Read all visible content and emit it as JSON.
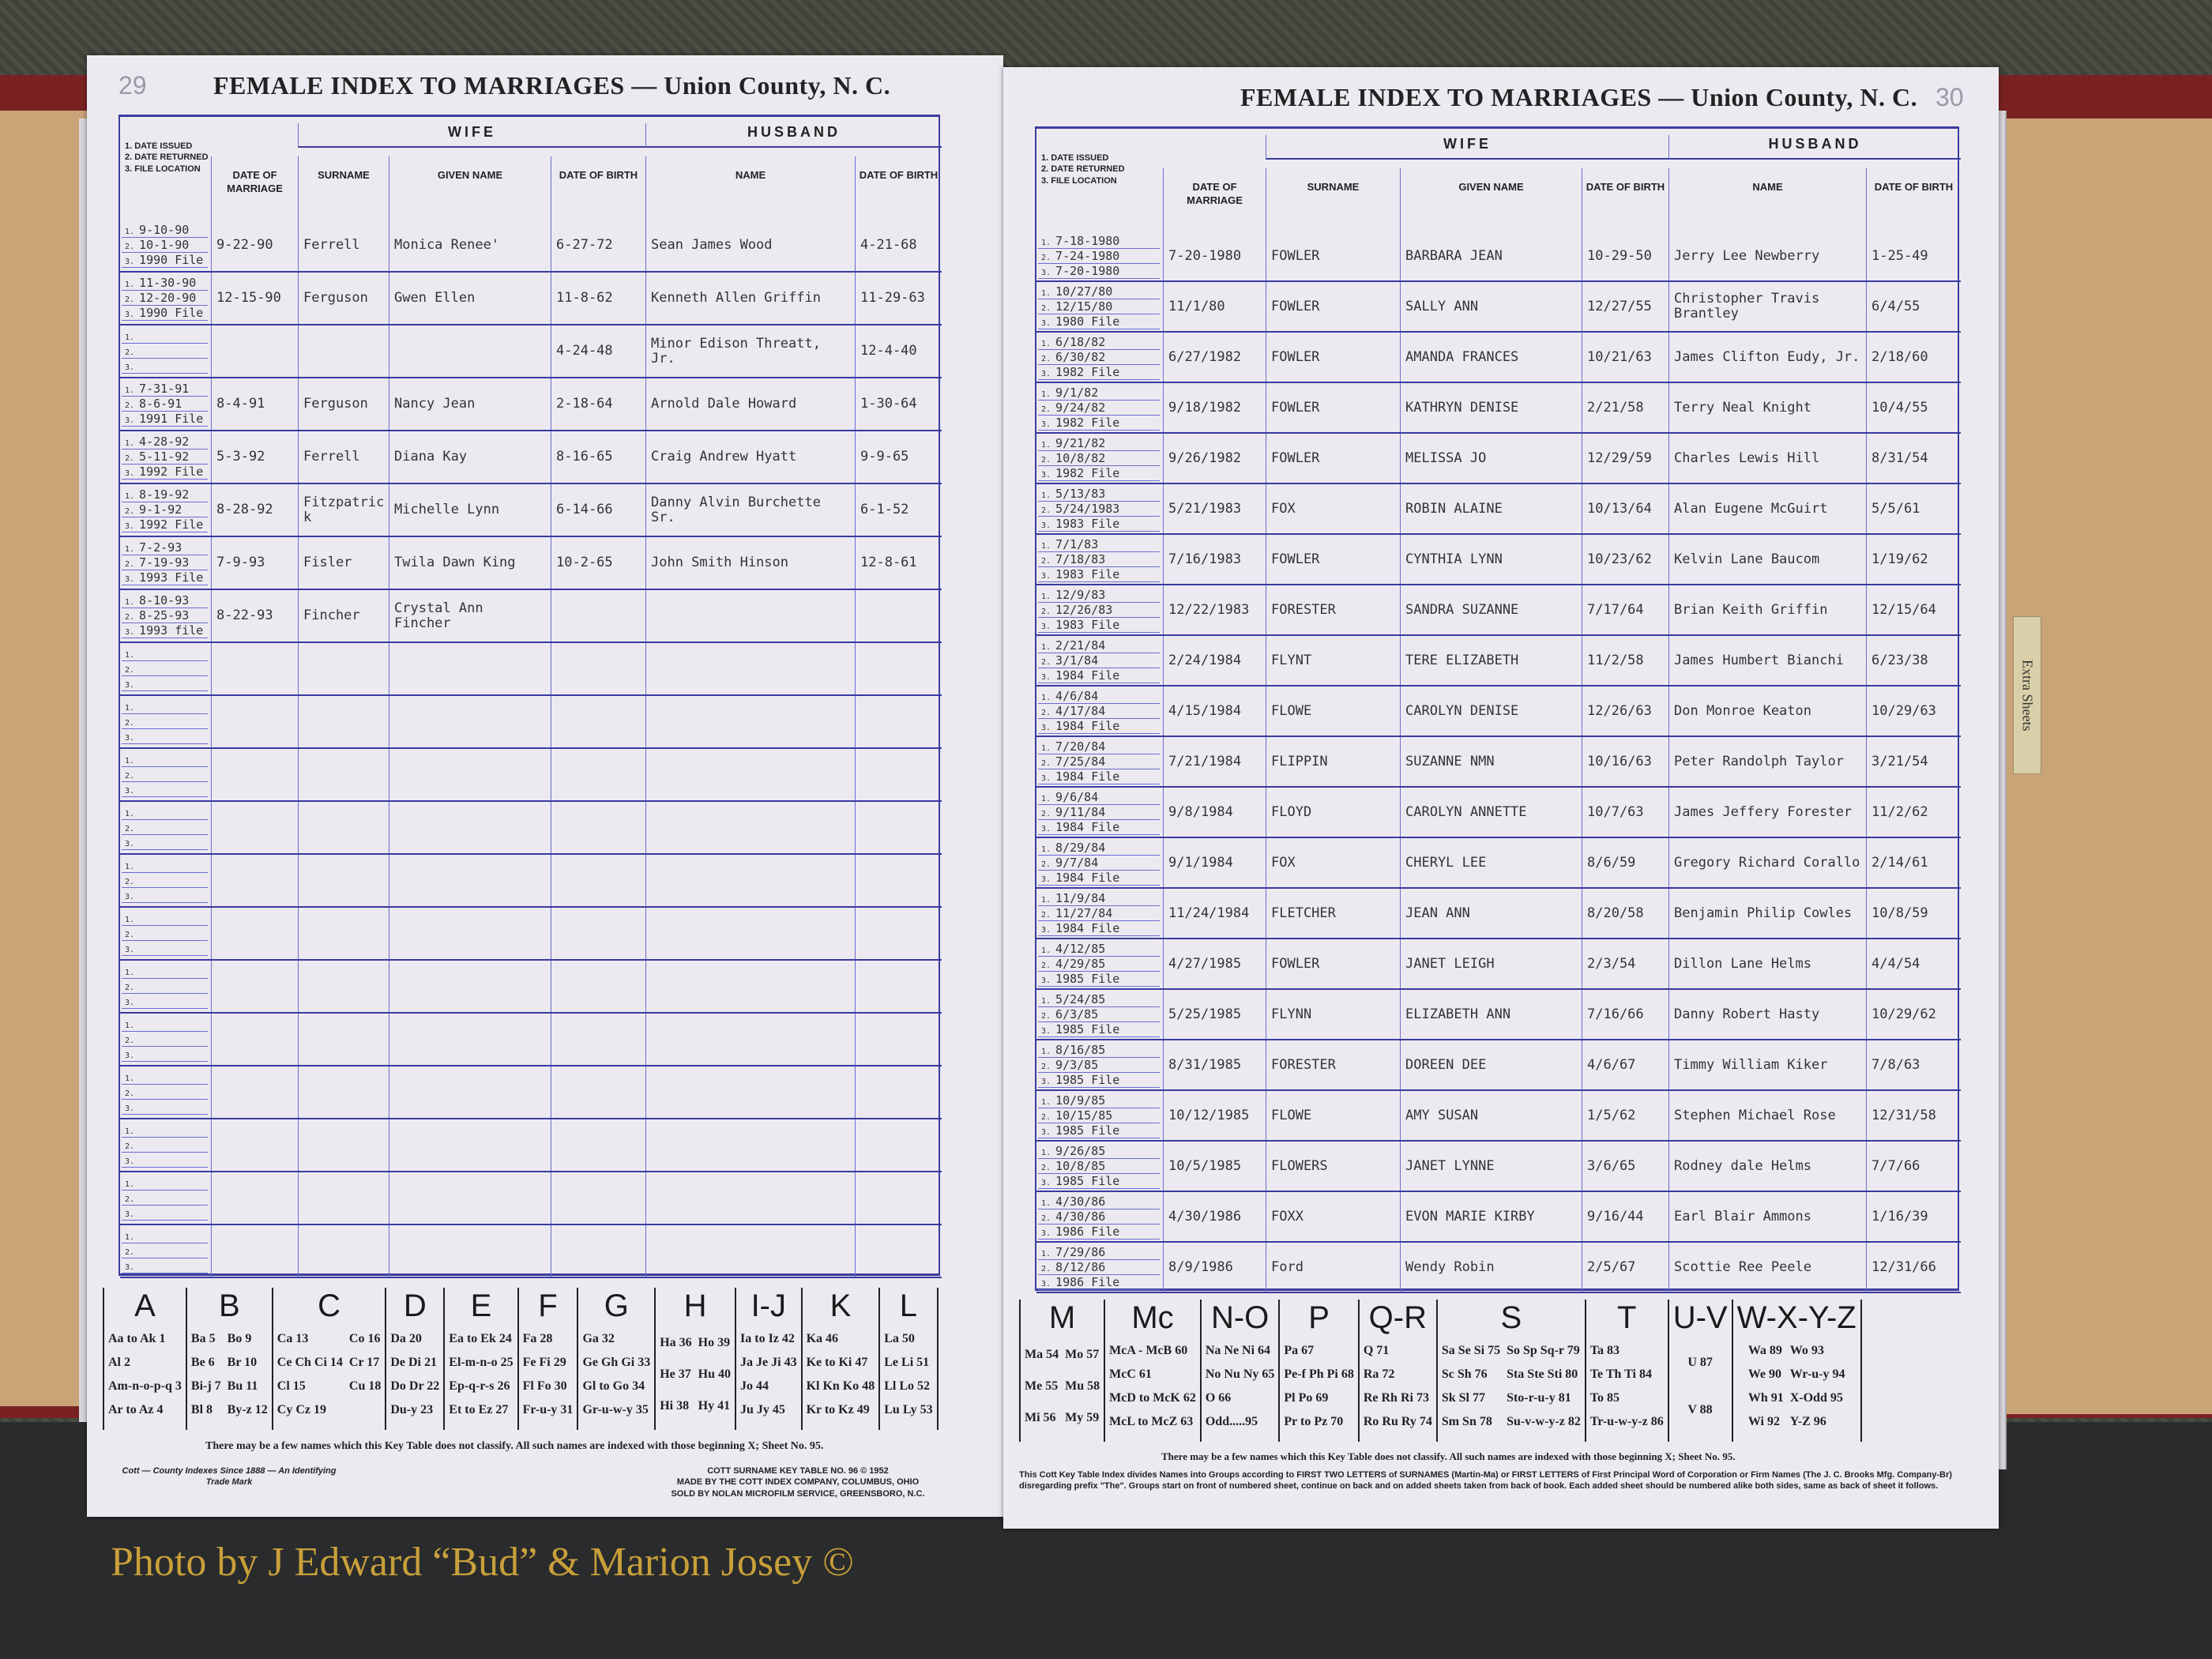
{
  "photo_credit": "Photo by J Edward “Bud” & Marion Josey ©",
  "extra_sheets_tab": "Extra Sheets",
  "headers": {
    "file_col": [
      "1. DATE ISSUED",
      "2. DATE RETURNED",
      "3. FILE LOCATION"
    ],
    "date_of_marriage": "Date of Marriage",
    "wife": "Wife",
    "surname": "Surname",
    "given_name": "Given Name",
    "date_of_birth": "Date of Birth",
    "husband": "Husband",
    "name": "Name"
  },
  "left_page": {
    "title": "FEMALE INDEX TO MARRIAGES — Union County, N. C.",
    "page_number": "29",
    "blank_rows": 13,
    "entries": [
      {
        "issued": "9-10-90",
        "returned": "10-1-90",
        "file": "1990 File",
        "married": "9-22-90",
        "surname": "Ferrell",
        "given": "Monica Renee'",
        "wife_dob": "6-27-72",
        "husband": "Sean James Wood",
        "husband_dob": "4-21-68"
      },
      {
        "issued": "11-30-90",
        "returned": "12-20-90",
        "file": "1990 File",
        "married": "12-15-90",
        "surname": "Ferguson",
        "given": "Gwen Ellen",
        "wife_dob": "11-8-62",
        "husband": "Kenneth Allen Griffin",
        "husband_dob": "11-29-63"
      },
      {
        "issued": "",
        "returned": "",
        "file": "",
        "married": "",
        "surname": "",
        "given": "",
        "wife_dob": "4-24-48",
        "husband": "Minor Edison Threatt, Jr.",
        "husband_dob": "12-4-40"
      },
      {
        "issued": "7-31-91",
        "returned": "8-6-91",
        "file": "1991 File",
        "married": "8-4-91",
        "surname": "Ferguson",
        "given": "Nancy Jean",
        "wife_dob": "2-18-64",
        "husband": "Arnold Dale Howard",
        "husband_dob": "1-30-64"
      },
      {
        "issued": "4-28-92",
        "returned": "5-11-92",
        "file": "1992 File",
        "married": "5-3-92",
        "surname": "Ferrell",
        "given": "Diana Kay",
        "wife_dob": "8-16-65",
        "husband": "Craig Andrew Hyatt",
        "husband_dob": "9-9-65"
      },
      {
        "issued": "8-19-92",
        "returned": "9-1-92",
        "file": "1992 File",
        "married": "8-28-92",
        "surname": "Fitzpatrick",
        "given": "Michelle Lynn",
        "wife_dob": "6-14-66",
        "husband": "Danny Alvin Burchette Sr.",
        "husband_dob": "6-1-52"
      },
      {
        "issued": "7-2-93",
        "returned": "7-19-93",
        "file": "1993 File",
        "married": "7-9-93",
        "surname": "Fisler",
        "given": "Twila Dawn King",
        "wife_dob": "10-2-65",
        "husband": "John Smith Hinson",
        "husband_dob": "12-8-61"
      },
      {
        "issued": "8-10-93",
        "returned": "8-25-93",
        "file": "1993 file",
        "married": "8-22-93",
        "surname": "Fincher",
        "given": "Crystal Ann Fincher",
        "wife_dob": "",
        "husband": "",
        "husband_dob": ""
      }
    ],
    "key_table": [
      {
        "letter": "A",
        "entries": [
          "Aa to Ak 1",
          "Al 2",
          "Am-n-o-p-q 3",
          "Ar to Az 4"
        ]
      },
      {
        "letter": "B",
        "entries": [
          "Ba 5",
          "Be 6",
          "Bi-j 7",
          "Bl 8",
          "Bo 9",
          "Br 10",
          "Bu 11",
          "By-z 12"
        ]
      },
      {
        "letter": "C",
        "entries": [
          "Ca 13",
          "Ce Ch Ci 14",
          "Cl 15",
          "Cy Cz 19",
          "Co 16",
          "Cr 17",
          "Cu 18"
        ]
      },
      {
        "letter": "D",
        "entries": [
          "Da 20",
          "De Di 21",
          "Do Dr 22",
          "Du-y 23"
        ]
      },
      {
        "letter": "E",
        "entries": [
          "Ea to Ek 24",
          "El-m-n-o 25",
          "Ep-q-r-s 26",
          "Et to Ez 27"
        ]
      },
      {
        "letter": "F",
        "entries": [
          "Fa 28",
          "Fe Fi 29",
          "Fl Fo 30",
          "Fr-u-y 31"
        ]
      },
      {
        "letter": "G",
        "entries": [
          "Ga 32",
          "Ge Gh Gi 33",
          "Gl to Go 34",
          "Gr-u-w-y 35"
        ]
      },
      {
        "letter": "H",
        "entries": [
          "Ha 36",
          "He 37",
          "Hi 38",
          "Ho 39",
          "Hu 40",
          "Hy 41"
        ]
      },
      {
        "letter": "I-J",
        "entries": [
          "Ia to Iz 42",
          "Ja Je Ji 43",
          "Jo 44",
          "Ju Jy 45"
        ]
      },
      {
        "letter": "K",
        "entries": [
          "Ka 46",
          "Ke to Ki 47",
          "Kl Kn Ko 48",
          "Kr to Kz 49"
        ]
      },
      {
        "letter": "L",
        "entries": [
          "La 50",
          "Le Li 51",
          "Ll Lo 52",
          "Lu Ly 53"
        ]
      }
    ],
    "key_note": "There may be a few names which this Key Table does not classify.  All such names are indexed with those beginning X; Sheet No. 95.",
    "trademark": "Cott — County Indexes Since 1888 — An Identifying Trade Mark",
    "publisher": [
      "COTT SURNAME KEY TABLE NO. 96 © 1952",
      "MADE BY THE COTT INDEX COMPANY, COLUMBUS, OHIO",
      "SOLD BY NOLAN MICROFILM SERVICE, GREENSBORO, N.C."
    ]
  },
  "right_page": {
    "title": "FEMALE INDEX TO MARRIAGES — Union County, N. C.",
    "page_number": "30",
    "entries": [
      {
        "issued": "7-18-1980",
        "returned": "7-24-1980",
        "file": "7-20-1980",
        "married": "7-20-1980",
        "surname": "FOWLER",
        "given": "BARBARA JEAN",
        "wife_dob": "10-29-50",
        "husband": "Jerry Lee Newberry",
        "husband_dob": "1-25-49"
      },
      {
        "issued": "10/27/80",
        "returned": "12/15/80",
        "file": "1980 File",
        "married": "11/1/80",
        "surname": "FOWLER",
        "given": "SALLY ANN",
        "wife_dob": "12/27/55",
        "husband": "Christopher Travis Brantley",
        "husband_dob": "6/4/55"
      },
      {
        "issued": "6/18/82",
        "returned": "6/30/82",
        "file": "1982 File",
        "married": "6/27/1982",
        "surname": "FOWLER",
        "given": "AMANDA FRANCES",
        "wife_dob": "10/21/63",
        "husband": "James Clifton Eudy, Jr.",
        "husband_dob": "2/18/60"
      },
      {
        "issued": "9/1/82",
        "returned": "9/24/82",
        "file": "1982 File",
        "married": "9/18/1982",
        "surname": "FOWLER",
        "given": "KATHRYN DENISE",
        "wife_dob": "2/21/58",
        "husband": "Terry Neal Knight",
        "husband_dob": "10/4/55"
      },
      {
        "issued": "9/21/82",
        "returned": "10/8/82",
        "file": "1982 File",
        "married": "9/26/1982",
        "surname": "FOWLER",
        "given": "MELISSA JO",
        "wife_dob": "12/29/59",
        "husband": "Charles Lewis Hill",
        "husband_dob": "8/31/54"
      },
      {
        "issued": "5/13/83",
        "returned": "5/24/1983",
        "file": "1983 File",
        "married": "5/21/1983",
        "surname": "FOX",
        "given": "ROBIN ALAINE",
        "wife_dob": "10/13/64",
        "husband": "Alan Eugene McGuirt",
        "husband_dob": "5/5/61"
      },
      {
        "issued": "7/1/83",
        "returned": "7/18/83",
        "file": "1983 File",
        "married": "7/16/1983",
        "surname": "FOWLER",
        "given": "CYNTHIA LYNN",
        "wife_dob": "10/23/62",
        "husband": "Kelvin Lane Baucom",
        "husband_dob": "1/19/62"
      },
      {
        "issued": "12/9/83",
        "returned": "12/26/83",
        "file": "1983 File",
        "married": "12/22/1983",
        "surname": "FORESTER",
        "given": "SANDRA SUZANNE",
        "wife_dob": "7/17/64",
        "husband": "Brian Keith Griffin",
        "husband_dob": "12/15/64"
      },
      {
        "issued": "2/21/84",
        "returned": "3/1/84",
        "file": "1984 File",
        "married": "2/24/1984",
        "surname": "FLYNT",
        "given": "TERE ELIZABETH",
        "wife_dob": "11/2/58",
        "husband": "James Humbert Bianchi",
        "husband_dob": "6/23/38"
      },
      {
        "issued": "4/6/84",
        "returned": "4/17/84",
        "file": "1984 File",
        "married": "4/15/1984",
        "surname": "FLOWE",
        "given": "CAROLYN DENISE",
        "wife_dob": "12/26/63",
        "husband": "Don Monroe Keaton",
        "husband_dob": "10/29/63"
      },
      {
        "issued": "7/20/84",
        "returned": "7/25/84",
        "file": "1984 File",
        "married": "7/21/1984",
        "surname": "FLIPPIN",
        "given": "SUZANNE NMN",
        "wife_dob": "10/16/63",
        "husband": "Peter Randolph Taylor",
        "husband_dob": "3/21/54"
      },
      {
        "issued": "9/6/84",
        "returned": "9/11/84",
        "file": "1984 File",
        "married": "9/8/1984",
        "surname": "FLOYD",
        "given": "CAROLYN ANNETTE",
        "wife_dob": "10/7/63",
        "husband": "James Jeffery Forester",
        "husband_dob": "11/2/62"
      },
      {
        "issued": "8/29/84",
        "returned": "9/7/84",
        "file": "1984 File",
        "married": "9/1/1984",
        "surname": "FOX",
        "given": "CHERYL LEE",
        "wife_dob": "8/6/59",
        "husband": "Gregory Richard Corallo",
        "husband_dob": "2/14/61"
      },
      {
        "issued": "11/9/84",
        "returned": "11/27/84",
        "file": "1984 File",
        "married": "11/24/1984",
        "surname": "FLETCHER",
        "given": "JEAN ANN",
        "wife_dob": "8/20/58",
        "husband": "Benjamin Philip Cowles",
        "husband_dob": "10/8/59"
      },
      {
        "issued": "4/12/85",
        "returned": "4/29/85",
        "file": "1985 File",
        "married": "4/27/1985",
        "surname": "FOWLER",
        "given": "JANET LEIGH",
        "wife_dob": "2/3/54",
        "husband": "Dillon Lane Helms",
        "husband_dob": "4/4/54"
      },
      {
        "issued": "5/24/85",
        "returned": "6/3/85",
        "file": "1985 File",
        "married": "5/25/1985",
        "surname": "FLYNN",
        "given": "ELIZABETH ANN",
        "wife_dob": "7/16/66",
        "husband": "Danny Robert Hasty",
        "husband_dob": "10/29/62"
      },
      {
        "issued": "8/16/85",
        "returned": "9/3/85",
        "file": "1985 File",
        "married": "8/31/1985",
        "surname": "FORESTER",
        "given": "DOREEN DEE",
        "wife_dob": "4/6/67",
        "husband": "Timmy William Kiker",
        "husband_dob": "7/8/63"
      },
      {
        "issued": "10/9/85",
        "returned": "10/15/85",
        "file": "1985 File",
        "married": "10/12/1985",
        "surname": "FLOWE",
        "given": "AMY SUSAN",
        "wife_dob": "1/5/62",
        "husband": "Stephen Michael Rose",
        "husband_dob": "12/31/58"
      },
      {
        "issued": "9/26/85",
        "returned": "10/8/85",
        "file": "1985 File",
        "married": "10/5/1985",
        "surname": "FLOWERS",
        "given": "JANET LYNNE",
        "wife_dob": "3/6/65",
        "husband": "Rodney dale Helms",
        "husband_dob": "7/7/66"
      },
      {
        "issued": "4/30/86",
        "returned": "4/30/86",
        "file": "1986 File",
        "married": "4/30/1986",
        "surname": "FOXX",
        "given": "EVON MARIE KIRBY",
        "wife_dob": "9/16/44",
        "husband": "Earl Blair Ammons",
        "husband_dob": "1/16/39"
      },
      {
        "issued": "7/29/86",
        "returned": "8/12/86",
        "file": "1986 File",
        "married": "8/9/1986",
        "surname": "Ford",
        "given": "Wendy Robin",
        "wife_dob": "2/5/67",
        "husband": "Scottie Ree Peele",
        "husband_dob": "12/31/66"
      }
    ],
    "key_table": [
      {
        "letter": "M",
        "entries": [
          "Ma 54",
          "Me 55",
          "Mi 56",
          "Mo 57",
          "Mu 58",
          "My 59"
        ]
      },
      {
        "letter": "Mc",
        "entries": [
          "McA - McB 60",
          "McC 61",
          "McD to McK 62",
          "McL to McZ 63"
        ]
      },
      {
        "letter": "N-O",
        "entries": [
          "Na Ne Ni 64",
          "No Nu Ny 65",
          "O 66",
          "Odd.....95"
        ]
      },
      {
        "letter": "P",
        "entries": [
          "Pa 67",
          "Pe-f Ph Pi 68",
          "Pl Po 69",
          "Pr to Pz 70"
        ]
      },
      {
        "letter": "Q-R",
        "entries": [
          "Q 71",
          "Ra 72",
          "Re Rh Ri 73",
          "Ro Ru Ry 74"
        ]
      },
      {
        "letter": "S",
        "entries": [
          "Sa Se Si 75",
          "Sc Sh 76",
          "Sk Sl 77",
          "Sm Sn 78",
          "So Sp Sq-r 79",
          "Sta Ste Sti 80",
          "Sto-r-u-y 81",
          "Su-v-w-y-z 82"
        ]
      },
      {
        "letter": "T",
        "entries": [
          "Ta 83",
          "Te Th Ti 84",
          "To 85",
          "Tr-u-w-y-z 86"
        ]
      },
      {
        "letter": "U-V",
        "entries": [
          "U 87",
          "V 88"
        ]
      },
      {
        "letter": "W-X-Y-Z",
        "entries": [
          "Wa 89",
          "We 90",
          "Wh 91",
          "Wi 92",
          "Wo 93",
          "Wr-u-y 94",
          "X-Odd 95",
          "Y-Z 96"
        ]
      }
    ],
    "key_note": "There may be a few names which this Key Table does not classify.  All such names are indexed with those beginning X; Sheet No. 95.",
    "footer_note": [
      "This Cott Key Table Index divides Names into Groups according to FIRST TWO LETTERS of SURNAMES (Martin-Ma) or FIRST LETTERS of First Principal Word of Corporation or Firm Names (The J. C. Brooks Mfg. Company-Br)",
      "disregarding prefix \"The\". Groups start on front of numbered sheet, continue on back and on added sheets taken from back of book. Each added sheet should be numbered alike both sides, same as back of sheet it follows."
    ]
  }
}
